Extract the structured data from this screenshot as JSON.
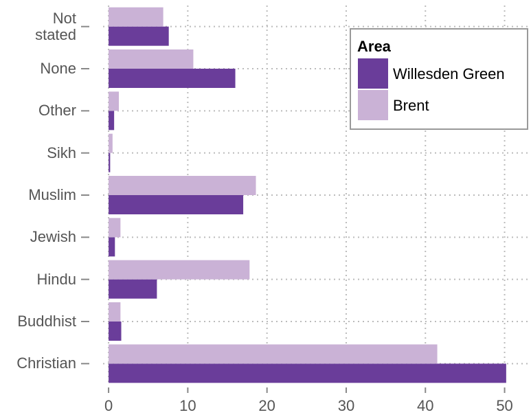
{
  "chart_data": {
    "type": "barh",
    "categories": [
      "Christian",
      "Buddhist",
      "Hindu",
      "Jewish",
      "Muslim",
      "Sikh",
      "Other",
      "None",
      "Not stated"
    ],
    "series": [
      {
        "name": "Willesden Green",
        "color": "#6a3d9a",
        "values": [
          50.2,
          1.6,
          6.1,
          0.8,
          17.0,
          0.2,
          0.7,
          16.0,
          7.6
        ]
      },
      {
        "name": "Brent",
        "color": "#cab2d6",
        "values": [
          41.5,
          1.5,
          17.8,
          1.5,
          18.6,
          0.5,
          1.3,
          10.7,
          6.9
        ]
      }
    ],
    "xlim": [
      -0.7,
      52.9
    ],
    "xticks": [
      0,
      10,
      20,
      30,
      40,
      50
    ],
    "grid": true,
    "legend": {
      "title": "Area",
      "position": "top-right"
    }
  }
}
